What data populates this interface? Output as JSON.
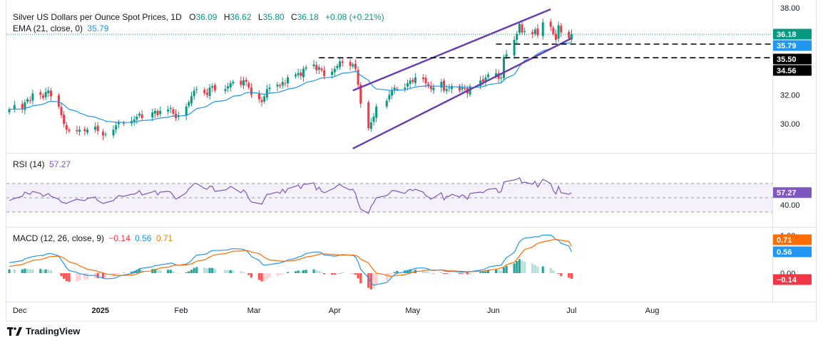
{
  "colors": {
    "up": "#089981",
    "down": "#f23645",
    "ema": "#2196f3",
    "channel": "#673ab7",
    "rsi": "#7e57c2",
    "rsi_band": "#ede7f6",
    "macd_line": "#2196f3",
    "signal_line": "#ff6d00",
    "hist_up_strong": "#26a69a",
    "hist_up_weak": "#b2dfdb",
    "hist_down_strong": "#ff5252",
    "hist_down_weak": "#ffcdd2"
  },
  "header": {
    "title": "Silver US Dollars per Ounce Spot Prices, 1D",
    "o_label": "O",
    "o": "36.09",
    "h_label": "H",
    "h": "36.62",
    "l_label": "L",
    "l": "35.80",
    "c_label": "C",
    "c": "36.18",
    "change": "+0.08 (+0.21%)",
    "ema_label": "EMA (21, close, 0)",
    "ema_value": "35.79"
  },
  "rsi_legend": {
    "label": "RSI (14)",
    "value": "57.27"
  },
  "macd_legend": {
    "label": "MACD (12, 26, close, 9)",
    "hist": "−0.14",
    "macd": "0.56",
    "signal": "0.71"
  },
  "brand": {
    "name": "TradingView"
  },
  "chart_data": [
    {
      "type": "candlestick",
      "title": "Silver US Dollars per Ounce Spot Prices, 1D",
      "y_ticks": [
        "38.00",
        "32.00",
        "30.00"
      ],
      "x_ticks": [
        "Dec",
        "2025",
        "Feb",
        "Mar",
        "Apr",
        "May",
        "Jun",
        "Jul",
        "Aug"
      ],
      "price_labels": [
        {
          "value": "36.18",
          "kind": "last"
        },
        {
          "value": "35.79",
          "kind": "ema"
        },
        {
          "value": "35.50",
          "kind": "level"
        },
        {
          "value": "34.56",
          "kind": "level"
        }
      ],
      "horizontal_levels": [
        35.5,
        34.56
      ],
      "channel": {
        "upper": [
          [
            "2025-04-08",
            32.3
          ],
          [
            "2025-06-23",
            37.9
          ]
        ],
        "lower": [
          [
            "2025-04-08",
            28.3
          ],
          [
            "2025-07-01",
            35.9
          ]
        ]
      },
      "close": [
        31.0,
        31.3,
        31.0,
        31.5,
        31.7,
        31.6,
        32.1,
        32.0,
        31.8,
        32.2,
        32.3,
        31.9,
        31.2,
        30.6,
        30.0,
        29.6,
        29.5,
        29.5,
        29.6,
        29.5,
        29.6,
        29.8,
        29.5,
        29.2,
        29.3,
        29.6,
        29.9,
        30.1,
        30.0,
        30.2,
        30.3,
        30.5,
        30.7,
        30.4,
        30.8,
        30.9,
        30.6,
        30.9,
        31.0,
        31.1,
        30.7,
        30.4,
        30.6,
        31.2,
        31.5,
        31.9,
        32.3,
        32.4,
        32.1,
        32.0,
        32.5,
        32.6,
        32.3,
        32.4,
        32.6,
        32.8,
        32.9,
        32.7,
        33.0,
        32.9,
        32.5,
        32.0,
        31.7,
        31.5,
        31.9,
        32.4,
        32.5,
        32.7,
        32.6,
        32.9,
        32.8,
        33.2,
        33.4,
        33.5,
        33.3,
        33.8,
        33.9,
        34.1,
        33.7,
        33.9,
        33.7,
        33.3,
        33.6,
        33.8,
        34.0,
        34.3,
        34.2,
        34.0,
        34.1,
        33.8,
        32.7,
        31.4,
        29.7,
        30.1,
        30.5,
        31.2,
        31.6,
        32.0,
        32.3,
        32.5,
        32.4,
        32.5,
        32.8,
        33.0,
        32.9,
        33.2,
        33.1,
        32.8,
        32.6,
        32.4,
        32.5,
        32.9,
        32.3,
        32.4,
        32.5,
        32.6,
        32.3,
        32.5,
        32.4,
        32.1,
        32.6,
        33.0,
        32.9,
        33.2,
        33.4,
        33.5,
        33.1,
        33.2,
        34.6,
        34.8,
        35.8,
        36.2,
        36.9,
        36.3,
        36.4,
        36.2,
        36.5,
        36.1,
        37.0,
        36.7,
        36.2,
        35.8,
        36.8,
        36.3,
        35.9,
        36.2
      ]
    },
    {
      "type": "line",
      "title": "RSI (14)",
      "y_ticks": [
        "40.00"
      ],
      "value_labels": [
        "57.27"
      ],
      "values": [
        46,
        49,
        52,
        58,
        56,
        55,
        59,
        56,
        52,
        54,
        56,
        52,
        48,
        44,
        43,
        42,
        44,
        48,
        47,
        46,
        49,
        51,
        46,
        42,
        43,
        46,
        50,
        53,
        52,
        55,
        55,
        57,
        60,
        54,
        58,
        60,
        54,
        58,
        59,
        58,
        53,
        48,
        50,
        57,
        63,
        66,
        70,
        70,
        63,
        62,
        66,
        66,
        59,
        61,
        63,
        66,
        64,
        57,
        61,
        57,
        49,
        44,
        42,
        41,
        48,
        55,
        55,
        58,
        56,
        62,
        57,
        63,
        66,
        68,
        63,
        69,
        69,
        71,
        61,
        65,
        59,
        57,
        62,
        64,
        67,
        69,
        66,
        61,
        62,
        56,
        43,
        34,
        28,
        38,
        43,
        50,
        53,
        56,
        60,
        60,
        59,
        56,
        60,
        62,
        60,
        62,
        58,
        53,
        51,
        48,
        50,
        57,
        47,
        52,
        52,
        55,
        51,
        54,
        52,
        48,
        56,
        58,
        57,
        60,
        62,
        63,
        57,
        59,
        72,
        73,
        75,
        76,
        78,
        71,
        72,
        69,
        73,
        65,
        76,
        70,
        60,
        55,
        66,
        57,
        55,
        57
      ]
    },
    {
      "type": "bar+line",
      "title": "MACD (12, 26, close, 9)",
      "y_ticks": [
        "1.00",
        "0.00"
      ],
      "value_labels": [
        "0.71",
        "0.56",
        "−0.14"
      ],
      "series": [
        {
          "name": "MACD",
          "values": [
            0.28,
            0.3,
            0.33,
            0.38,
            0.4,
            0.42,
            0.44,
            0.47,
            0.47,
            0.5,
            0.52,
            0.52,
            0.46,
            0.35,
            0.25,
            0.14,
            0.07,
            0.02,
            -0.01,
            -0.04,
            -0.06,
            -0.06,
            -0.09,
            -0.13,
            -0.15,
            -0.14,
            -0.12,
            -0.08,
            -0.05,
            -0.01,
            0.02,
            0.07,
            0.12,
            0.13,
            0.17,
            0.2,
            0.2,
            0.22,
            0.25,
            0.27,
            0.25,
            0.22,
            0.21,
            0.24,
            0.28,
            0.34,
            0.42,
            0.48,
            0.5,
            0.52,
            0.57,
            0.6,
            0.6,
            0.61,
            0.62,
            0.64,
            0.65,
            0.64,
            0.63,
            0.6,
            0.54,
            0.44,
            0.34,
            0.25,
            0.21,
            0.22,
            0.23,
            0.26,
            0.27,
            0.3,
            0.31,
            0.35,
            0.39,
            0.43,
            0.44,
            0.48,
            0.52,
            0.56,
            0.56,
            0.56,
            0.54,
            0.48,
            0.46,
            0.45,
            0.46,
            0.48,
            0.49,
            0.48,
            0.47,
            0.43,
            0.3,
            0.1,
            -0.12,
            -0.26,
            -0.32,
            -0.3,
            -0.25,
            -0.18,
            -0.1,
            -0.04,
            0.0,
            0.03,
            0.06,
            0.09,
            0.1,
            0.13,
            0.14,
            0.13,
            0.11,
            0.08,
            0.07,
            0.09,
            0.06,
            0.05,
            0.04,
            0.05,
            0.03,
            0.03,
            0.03,
            0.01,
            0.04,
            0.08,
            0.09,
            0.12,
            0.16,
            0.2,
            0.2,
            0.21,
            0.32,
            0.41,
            0.55,
            0.69,
            0.83,
            0.89,
            0.93,
            0.95,
            0.97,
            0.96,
            1.01,
            1.01,
            0.96,
            0.89,
            0.87,
            0.79,
            0.72,
            0.56
          ]
        },
        {
          "name": "Signal",
          "values": [
            0.18,
            0.2,
            0.23,
            0.26,
            0.29,
            0.31,
            0.34,
            0.36,
            0.38,
            0.4,
            0.43,
            0.44,
            0.45,
            0.43,
            0.4,
            0.35,
            0.3,
            0.24,
            0.19,
            0.14,
            0.1,
            0.07,
            0.04,
            0.01,
            -0.02,
            -0.04,
            -0.06,
            -0.06,
            -0.06,
            -0.05,
            -0.04,
            -0.02,
            0.01,
            0.04,
            0.06,
            0.09,
            0.11,
            0.14,
            0.16,
            0.18,
            0.2,
            0.21,
            0.21,
            0.22,
            0.23,
            0.25,
            0.28,
            0.32,
            0.35,
            0.39,
            0.43,
            0.46,
            0.49,
            0.52,
            0.54,
            0.56,
            0.58,
            0.59,
            0.6,
            0.6,
            0.59,
            0.56,
            0.52,
            0.47,
            0.42,
            0.38,
            0.35,
            0.33,
            0.32,
            0.32,
            0.32,
            0.32,
            0.34,
            0.36,
            0.38,
            0.4,
            0.43,
            0.46,
            0.48,
            0.5,
            0.51,
            0.51,
            0.5,
            0.49,
            0.49,
            0.48,
            0.48,
            0.48,
            0.48,
            0.47,
            0.44,
            0.37,
            0.27,
            0.17,
            0.08,
            0.0,
            -0.05,
            -0.08,
            -0.08,
            -0.07,
            -0.06,
            -0.04,
            -0.02,
            0.0,
            0.02,
            0.04,
            0.06,
            0.08,
            0.08,
            0.08,
            0.08,
            0.08,
            0.08,
            0.07,
            0.06,
            0.06,
            0.05,
            0.05,
            0.04,
            0.04,
            0.04,
            0.05,
            0.05,
            0.07,
            0.08,
            0.1,
            0.12,
            0.14,
            0.17,
            0.22,
            0.29,
            0.37,
            0.46,
            0.55,
            0.63,
            0.69,
            0.75,
            0.79,
            0.83,
            0.87,
            0.89,
            0.89,
            0.89,
            0.87,
            0.84,
            0.71
          ]
        }
      ]
    }
  ]
}
